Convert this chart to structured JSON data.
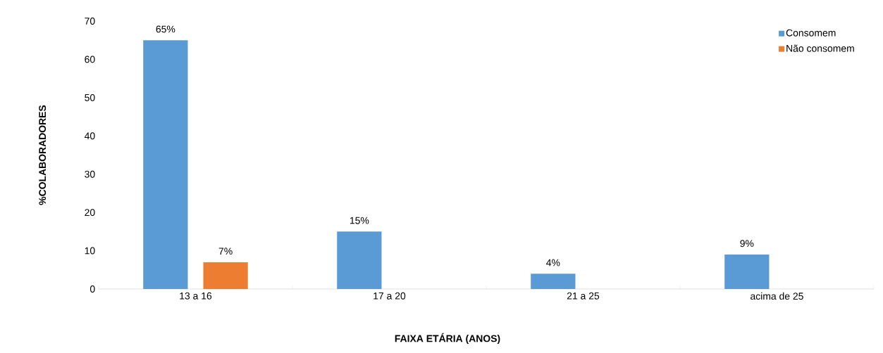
{
  "chart_data": {
    "type": "bar",
    "xlabel": "FAIXA ETÁRIA  (ANOS)",
    "ylabel": "%COLABORADORES",
    "categories": [
      "13 a 16",
      "17 a 20",
      "21 a 25",
      "acima de 25"
    ],
    "series": [
      {
        "name": "Consomem",
        "color": "#5b9bd5",
        "values": [
          65,
          15,
          4,
          9
        ],
        "value_labels": [
          "65%",
          "15%",
          "4%",
          "9%"
        ]
      },
      {
        "name": "Não consomem",
        "color": "#ed7d31",
        "values": [
          7,
          null,
          null,
          null
        ],
        "value_labels": [
          "7%",
          null,
          null,
          null
        ]
      }
    ],
    "ylim": [
      0,
      70
    ],
    "yticks": [
      0,
      10,
      20,
      30,
      40,
      50,
      60,
      70
    ],
    "grid": false,
    "legend": "top right"
  }
}
